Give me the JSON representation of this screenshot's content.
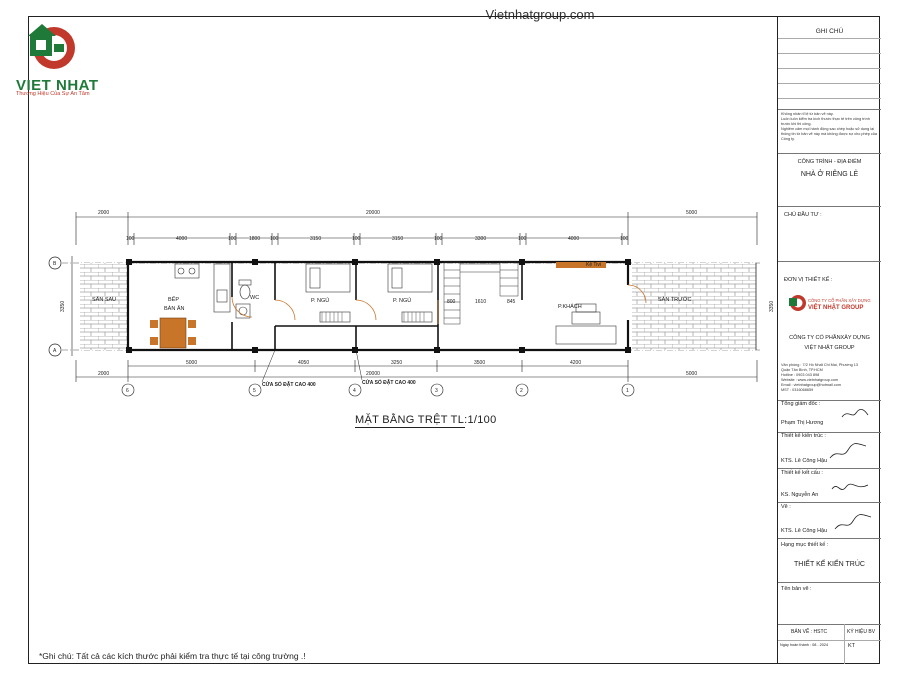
{
  "header": {
    "site": "Vietnhatgroup.com",
    "logo_name": "VIET NHAT",
    "logo_slogan": "Thương Hiệu Của Sự An Tâm"
  },
  "plan": {
    "title": "MẶT BẰNG TRỆT TL:1/100",
    "note": "*Ghi chú: Tất cả các kích thước phải kiểm tra thực tế tại công trường .!",
    "rooms": {
      "san_sau": "SÂN SAU",
      "bep": "BẾP",
      "ban_an": "BÀN ĂN",
      "wc": "WC",
      "p_ngu_1": "P. NGỦ",
      "p_ngu_2": "P. NGỦ",
      "p_khach": "P.KHÁCH",
      "san_truoc": "SÂN TRƯỚC",
      "ke_tv": "Kệ Tivi"
    },
    "dims_top": {
      "overall_left": "2000",
      "overall_mid": "20000",
      "overall_right": "5000",
      "d1": "100",
      "d2": "4000",
      "d3": "100",
      "d4": "1800",
      "d5": "100",
      "d6": "3150",
      "d7": "100",
      "d8": "3150",
      "d9": "100",
      "d10": "3300",
      "d11": "100",
      "d12": "4000",
      "d13": "100"
    },
    "dims_bottom": {
      "d1": "5000",
      "d2": "4050",
      "d3": "3250",
      "d4": "3500",
      "d5": "4200",
      "overall_left": "2000",
      "overall_mid": "20000",
      "overall_right": "5000"
    },
    "dims_side": {
      "left": "3350",
      "right": "3350"
    },
    "dims_inner": {
      "a": "800",
      "b": "1610",
      "c": "845"
    },
    "window_notes": {
      "w1": "CỬA SỔ ĐẶT CAO 400",
      "w2": "CỬA SỔ ĐẶT CAO 400"
    },
    "axes_x": [
      "6",
      "5",
      "4",
      "3",
      "2",
      "1"
    ],
    "axes_y": [
      "B",
      "A"
    ]
  },
  "title_block": {
    "ghi_chu": "GHI CHÚ",
    "notes": "Không nhân tỉ lệ từ bản vẽ này.\nLuôn luôn kiểm tra kích thước thực tế trên công trình trước khi thi công.\nNghiêm cấm mọi hành động sao chép hoặc sử dụng lại thông tin từ bản vẽ này mà không được sự cho phép của Công ty.",
    "cong_trinh_label": "CÔNG TRÌNH - ĐỊA ĐIỂM",
    "cong_trinh_value": "NHÀ Ở RIÊNG LẺ",
    "chu_dau_tu_label": "CHỦ ĐẦU TƯ :",
    "don_vi_label": "ĐƠN VỊ THIẾT KẾ :",
    "company_logo_line1": "CÔNG TY CỔ PHẦN XÂY DỰNG",
    "company_logo_line2": "VIỆT NHẬT GROUP",
    "company_name_1": "CÔNG TY CỔ PHẦNXÂY DỰNG",
    "company_name_2": "VIỆT NHẬT GROUP",
    "company_info": "Văn phòng : 7/2 Hồ Nhất Chi Mai, Phường 13\nQuận Tân Bình, TP.HCM\nHotline : 0903 043 898\nWebsite : www.vietnhatgroup.com\nEmail : vietnhatgroup@hotmail.com\nMST : 0316068659",
    "tong_giam_doc_label": "Tổng giám đốc :",
    "tong_giam_doc_name": "Phạm Thị Hương",
    "tk_kien_truc_label": "Thiết kế kiến trúc :",
    "tk_kien_truc_name": "KTS. Lê Công Hậu",
    "tk_ket_cau_label": "Thiết kế kết cấu :",
    "tk_ket_cau_name": "KS. Nguyễn An",
    "ve_label": "Vẽ :",
    "ve_name": "KTS. Lê Công Hậu",
    "hang_muc_label": "Hạng mục thiết kế :",
    "hang_muc_value": "THIẾT KẾ KIẾN TRÚC",
    "ten_ban_ve_label": "Tên bản vẽ :",
    "ban_ve": "BẢN VẼ : HSTC",
    "ky_hieu_bv": "KÝ HIỆU BV",
    "ngay_hoan_thanh": "Ngày hoàn thành : 08 - 2024",
    "ky_hieu_value": "KT"
  },
  "colors": {
    "logo_green": "#1f7a3a",
    "logo_red": "#c0392b",
    "wall": "#111111",
    "wood": "#c8752a",
    "brick_line": "#888888"
  }
}
